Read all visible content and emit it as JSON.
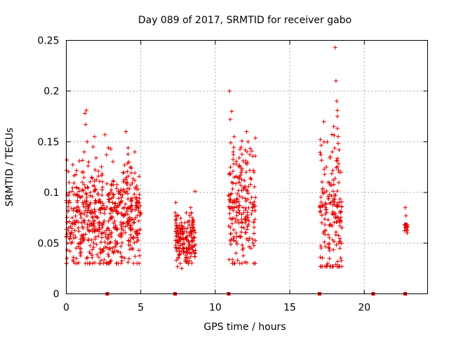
{
  "chart_data": {
    "type": "scatter",
    "title": "Day 089 of 2017, SRMTID for receiver gabo",
    "xlabel": "GPS time / hours",
    "ylabel": "SRMTID / TECUs",
    "xlim": [
      0,
      24.25
    ],
    "ylim": [
      0,
      0.25
    ],
    "x_ticks": [
      0,
      5,
      10,
      15,
      20
    ],
    "x_tick_labels": [
      "0",
      "5",
      "10",
      "15",
      "20"
    ],
    "y_ticks": [
      0,
      0.05,
      0.1,
      0.15,
      0.2,
      0.25
    ],
    "y_tick_labels": [
      "0",
      "0.05",
      "0.1",
      "0.15",
      "0.2",
      "0.25"
    ],
    "grid": true,
    "marker": "+",
    "color": "#e00000",
    "gap_markers_x": [
      2.75,
      7.3,
      10.9,
      17.0,
      20.6,
      22.75
    ],
    "clusters": [
      {
        "x_start": 0.0,
        "x_end": 5.0,
        "y_min": 0.03,
        "y_max": 0.18,
        "y_center": 0.075
      },
      {
        "x_start": 7.3,
        "x_end": 8.7,
        "y_min": 0.025,
        "y_max": 0.1,
        "y_center": 0.055
      },
      {
        "x_start": 10.9,
        "x_end": 12.7,
        "y_min": 0.03,
        "y_max": 0.2,
        "y_center": 0.085
      },
      {
        "x_start": 17.0,
        "x_end": 18.5,
        "y_min": 0.027,
        "y_max": 0.243,
        "y_center": 0.08
      },
      {
        "x_start": 22.7,
        "x_end": 22.9,
        "y_min": 0.06,
        "y_max": 0.085,
        "y_center": 0.07
      }
    ],
    "points": [
      [
        0.05,
        0.035
      ],
      [
        0.1,
        0.05
      ],
      [
        0.15,
        0.065
      ],
      [
        0.2,
        0.1
      ],
      [
        0.25,
        0.09
      ],
      [
        0.3,
        0.06
      ],
      [
        0.4,
        0.075
      ],
      [
        0.5,
        0.055
      ],
      [
        0.6,
        0.07
      ],
      [
        0.7,
        0.085
      ],
      [
        0.8,
        0.065
      ],
      [
        0.9,
        0.05
      ],
      [
        1.0,
        0.075
      ],
      [
        1.1,
        0.09
      ],
      [
        1.15,
        0.12
      ],
      [
        1.2,
        0.14
      ],
      [
        1.25,
        0.178
      ],
      [
        1.3,
        0.167
      ],
      [
        1.35,
        0.181
      ],
      [
        1.4,
        0.15
      ],
      [
        1.5,
        0.13
      ],
      [
        1.6,
        0.1
      ],
      [
        1.7,
        0.115
      ],
      [
        1.8,
        0.145
      ],
      [
        1.9,
        0.155
      ],
      [
        2.0,
        0.09
      ],
      [
        2.1,
        0.075
      ],
      [
        2.2,
        0.065
      ],
      [
        2.3,
        0.08
      ],
      [
        2.4,
        0.06
      ],
      [
        2.5,
        0.07
      ],
      [
        2.6,
        0.157
      ],
      [
        2.7,
        0.137
      ],
      [
        2.8,
        0.055
      ],
      [
        2.9,
        0.045
      ],
      [
        3.0,
        0.075
      ],
      [
        3.1,
        0.09
      ],
      [
        3.2,
        0.085
      ],
      [
        3.3,
        0.065
      ],
      [
        3.4,
        0.05
      ],
      [
        3.5,
        0.08
      ],
      [
        3.6,
        0.1
      ],
      [
        3.7,
        0.095
      ],
      [
        3.8,
        0.07
      ],
      [
        3.9,
        0.085
      ],
      [
        4.0,
        0.16
      ],
      [
        4.1,
        0.11
      ],
      [
        4.2,
        0.13
      ],
      [
        4.3,
        0.065
      ],
      [
        4.4,
        0.045
      ],
      [
        4.5,
        0.07
      ],
      [
        4.6,
        0.14
      ],
      [
        4.7,
        0.085
      ],
      [
        4.8,
        0.06
      ],
      [
        4.9,
        0.09
      ],
      [
        5.0,
        0.08
      ],
      [
        7.35,
        0.09
      ],
      [
        7.45,
        0.065
      ],
      [
        7.55,
        0.05
      ],
      [
        7.65,
        0.03
      ],
      [
        7.75,
        0.025
      ],
      [
        7.85,
        0.055
      ],
      [
        7.95,
        0.07
      ],
      [
        8.05,
        0.045
      ],
      [
        8.15,
        0.04
      ],
      [
        8.25,
        0.06
      ],
      [
        8.35,
        0.085
      ],
      [
        8.45,
        0.075
      ],
      [
        8.55,
        0.065
      ],
      [
        8.65,
        0.101
      ],
      [
        10.95,
        0.2
      ],
      [
        11.0,
        0.172
      ],
      [
        11.1,
        0.18
      ],
      [
        11.2,
        0.14
      ],
      [
        11.3,
        0.09
      ],
      [
        11.4,
        0.06
      ],
      [
        11.5,
        0.033
      ],
      [
        11.6,
        0.11
      ],
      [
        11.7,
        0.125
      ],
      [
        11.8,
        0.095
      ],
      [
        11.9,
        0.08
      ],
      [
        12.0,
        0.07
      ],
      [
        12.1,
        0.16
      ],
      [
        12.2,
        0.15
      ],
      [
        12.3,
        0.055
      ],
      [
        12.4,
        0.045
      ],
      [
        12.5,
        0.085
      ],
      [
        12.6,
        0.12
      ],
      [
        12.7,
        0.095
      ],
      [
        17.05,
        0.085
      ],
      [
        17.15,
        0.07
      ],
      [
        17.25,
        0.06
      ],
      [
        17.35,
        0.1
      ],
      [
        17.45,
        0.125
      ],
      [
        17.55,
        0.03
      ],
      [
        17.65,
        0.045
      ],
      [
        17.75,
        0.09
      ],
      [
        17.85,
        0.14
      ],
      [
        17.95,
        0.165
      ],
      [
        18.05,
        0.243
      ],
      [
        18.1,
        0.21
      ],
      [
        18.15,
        0.19
      ],
      [
        18.2,
        0.175
      ],
      [
        18.25,
        0.155
      ],
      [
        18.3,
        0.12
      ],
      [
        18.4,
        0.08
      ],
      [
        18.5,
        0.065
      ],
      [
        22.75,
        0.085
      ],
      [
        22.8,
        0.077
      ],
      [
        22.82,
        0.068
      ],
      [
        22.85,
        0.062
      ]
    ]
  }
}
